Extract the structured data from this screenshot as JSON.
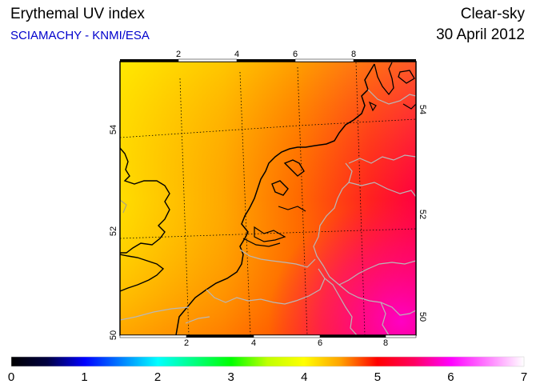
{
  "header": {
    "title": "Erythemal UV index",
    "source": "SCIAMACHY - KNMI/ESA",
    "condition": "Clear-sky",
    "date": "30 April 2012"
  },
  "map": {
    "longitude_ticks_top": [
      "2",
      "4",
      "6",
      "8"
    ],
    "longitude_ticks_bottom": [
      "2",
      "4",
      "6",
      "8"
    ],
    "latitude_ticks_left": [
      "54",
      "52",
      "50"
    ],
    "latitude_ticks_right": [
      "54",
      "52",
      "50"
    ]
  },
  "colorbar": {
    "labels": [
      "0",
      "1",
      "2",
      "3",
      "4",
      "5",
      "6",
      "7"
    ],
    "colors": [
      "#000000",
      "#0000ff",
      "#00ffff",
      "#00ff00",
      "#ffff00",
      "#ff0000",
      "#ff00ff",
      "#ffffff"
    ]
  }
}
